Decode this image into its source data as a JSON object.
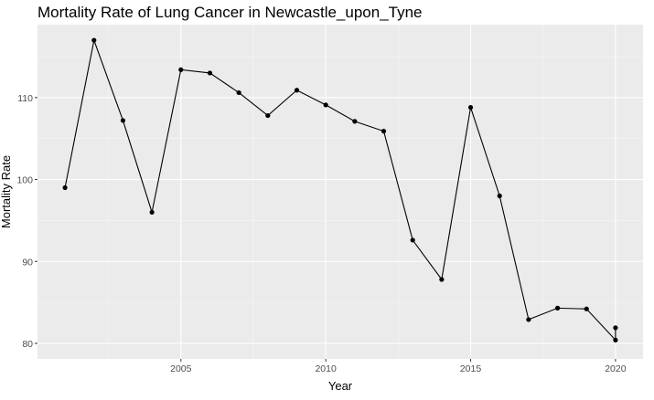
{
  "chart_data": {
    "type": "line",
    "title": "Mortality Rate of Lung Cancer in Newcastle_upon_Tyne",
    "xlabel": "Year",
    "ylabel": "Mortality Rate",
    "x": [
      2001,
      2002,
      2003,
      2004,
      2005,
      2006,
      2007,
      2008,
      2009,
      2010,
      2011,
      2012,
      2013,
      2014,
      2015,
      2016,
      2017,
      2018,
      2019,
      2020,
      2020
    ],
    "series": [
      {
        "values": [
          99.0,
          117.0,
          107.2,
          96.0,
          113.4,
          113.0,
          110.6,
          107.8,
          110.9,
          109.1,
          107.1,
          105.9,
          92.6,
          87.8,
          108.8,
          98.0,
          82.9,
          84.3,
          84.2,
          80.4,
          81.9
        ]
      }
    ],
    "xticks": [
      2005,
      2010,
      2015,
      2020
    ],
    "yticks": [
      80,
      90,
      100,
      110
    ],
    "xlim": [
      2000.05,
      2020.95
    ],
    "ylim": [
      78.1,
      118.9
    ],
    "grid": true,
    "legend": "none",
    "colors": {
      "panel": "#ebebeb",
      "grid_major": "#ffffff",
      "grid_minor": "#f5f5f5",
      "line": "#000000",
      "point": "#000000"
    }
  }
}
